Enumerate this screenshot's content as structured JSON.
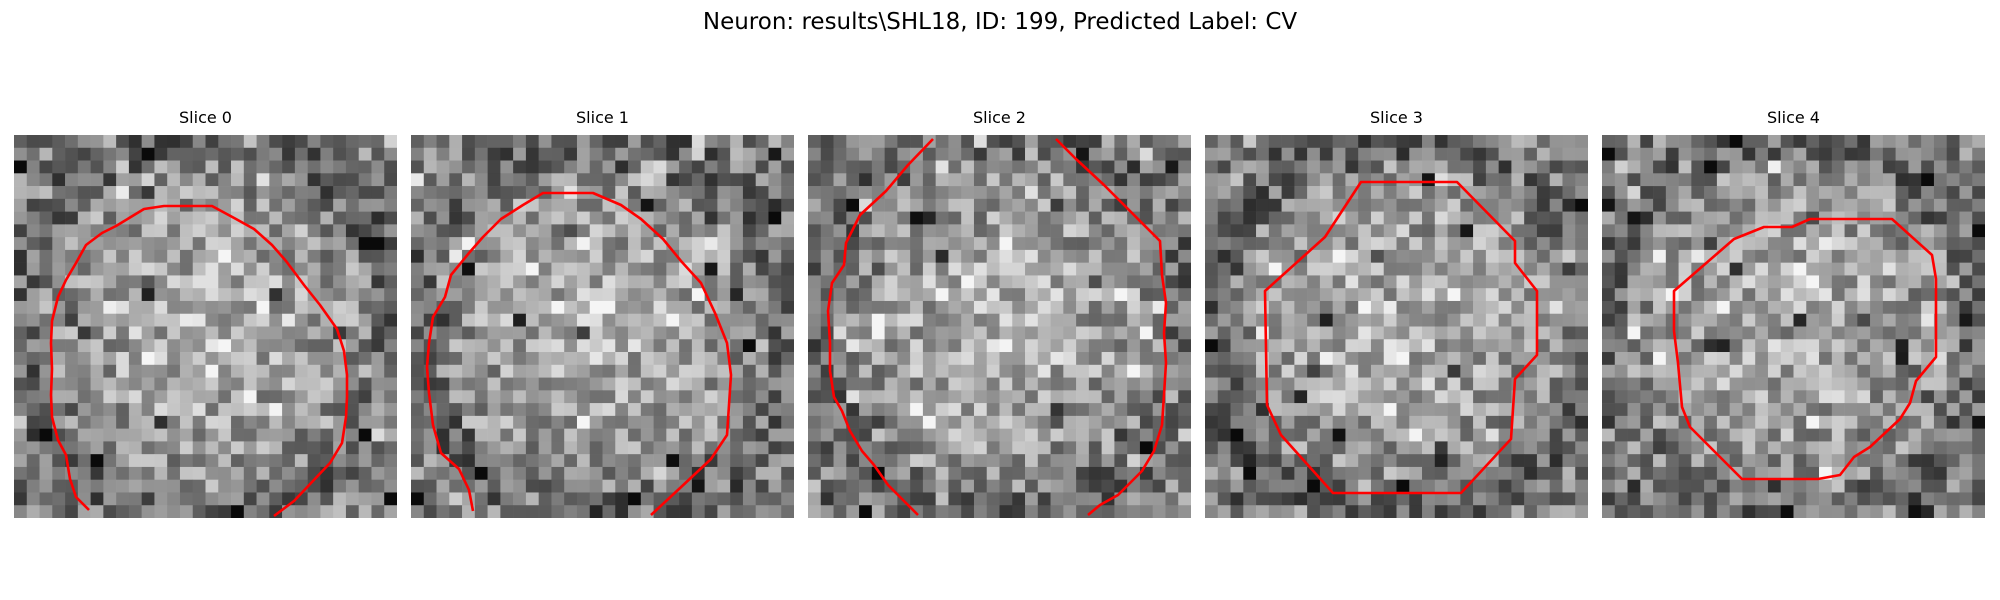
{
  "figure": {
    "title": "Neuron: results\\SHL18, ID: 199, Predicted Label: CV"
  },
  "panels": [
    {
      "title": "Slice 0"
    },
    {
      "title": "Slice 1"
    },
    {
      "title": "Slice 2"
    },
    {
      "title": "Slice 3"
    },
    {
      "title": "Slice 4"
    }
  ],
  "colors": {
    "contour": "#ff0000",
    "background": "#ffffff"
  },
  "image_description": "Five grayscale noisy pixel-grid microscopy patches (approx. 30x30 pixels each) with a red segmentation contour outlining a roughly round neuron region"
}
